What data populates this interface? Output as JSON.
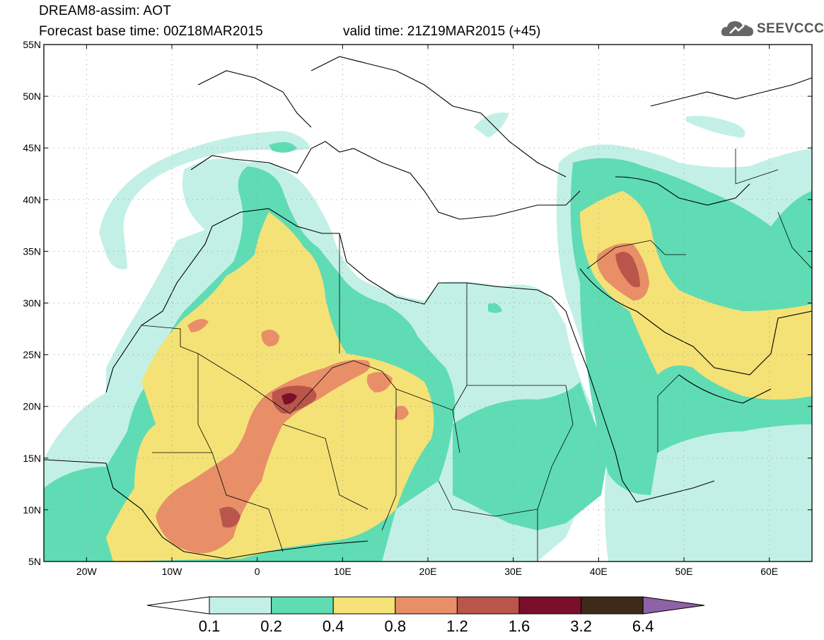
{
  "header": {
    "title": "DREAM8-assim: AOT",
    "base_time": "Forecast base time: 00Z18MAR2015",
    "valid_time": "valid time: 21Z19MAR2015 (+45)",
    "logo_text": "SEEVCCC"
  },
  "map": {
    "lon_range": [
      -25,
      65
    ],
    "lat_range": [
      5,
      55
    ],
    "lat_labels": [
      "55N",
      "50N",
      "45N",
      "40N",
      "35N",
      "30N",
      "25N",
      "20N",
      "15N",
      "10N",
      "5N"
    ],
    "lon_labels": [
      "20W",
      "10W",
      "0",
      "10E",
      "20E",
      "30E",
      "40E",
      "50E",
      "60E"
    ]
  },
  "colorbar": {
    "labels": [
      "0.1",
      "0.2",
      "0.4",
      "0.8",
      "1.2",
      "1.6",
      "3.2",
      "6.4"
    ],
    "colors": [
      "#ffffff",
      "#c3f0e6",
      "#5fdcb4",
      "#f4e276",
      "#e88f68",
      "#b9554a",
      "#7a0f2a",
      "#3d2a18",
      "#8e62a6"
    ]
  }
}
